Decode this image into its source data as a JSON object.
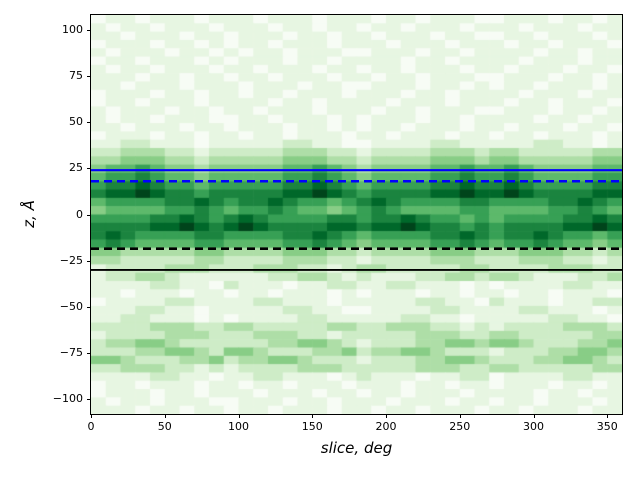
{
  "chart_data": {
    "type": "heatmap",
    "title": "",
    "xlabel": "slice, deg",
    "ylabel": "z, Å",
    "xlim": [
      0,
      360
    ],
    "ylim": [
      -108,
      108
    ],
    "grid_visible": false,
    "legend": "none",
    "x_ticks": {
      "values": [
        0,
        50,
        100,
        150,
        200,
        250,
        300,
        350
      ],
      "labels": [
        "0",
        "50",
        "100",
        "150",
        "200",
        "250",
        "300",
        "350"
      ]
    },
    "y_ticks": {
      "values": [
        100,
        75,
        50,
        25,
        0,
        -25,
        -50,
        -75,
        -100
      ],
      "labels": [
        "100",
        "75",
        "50",
        "25",
        "0",
        "−25",
        "−50",
        "−75",
        "−100"
      ]
    },
    "colormap": {
      "name": "Greens",
      "anchors": [
        [
          0.0,
          "#f7fcf5"
        ],
        [
          0.125,
          "#e5f5e0"
        ],
        [
          0.25,
          "#c7e9c0"
        ],
        [
          0.375,
          "#a1d99b"
        ],
        [
          0.5,
          "#74c476"
        ],
        [
          0.625,
          "#41ab5d"
        ],
        [
          0.75,
          "#238b45"
        ],
        [
          0.875,
          "#006d2c"
        ],
        [
          1.0,
          "#00441b"
        ]
      ]
    },
    "grid": {
      "cols": 36,
      "rows": 48,
      "col_width_deg": 10,
      "row_height_ang": 4.5,
      "value_scale": 9
    },
    "rows": [
      [
        "011011101",
        "110111011",
        "101101110",
        "011101101"
      ],
      [
        "101101110",
        "111011011",
        "011011101",
        "110111011"
      ],
      [
        "110111011",
        "011101101",
        "101110110",
        "011011101"
      ],
      [
        "011101101",
        "011011101",
        "110111011",
        "101101110"
      ],
      [
        "101110110",
        "101101110",
        "011101101",
        "111011011"
      ],
      [
        "011011101",
        "011101101",
        "111011011",
        "110111011"
      ],
      [
        "101101110",
        "110111011",
        "011011101",
        "101110110"
      ],
      [
        "111011011",
        "011011101",
        "101101110",
        "011101101"
      ],
      [
        "110111011",
        "101110110",
        "011101101",
        "011011101"
      ],
      [
        "011101101",
        "101101110",
        "111011011",
        "110111011"
      ],
      [
        "011011101",
        "111011011",
        "110111011",
        "101101110"
      ],
      [
        "101110110",
        "110111011",
        "101101110",
        "011101101"
      ],
      [
        "101101110",
        "011011101",
        "011101101",
        "111011011"
      ],
      [
        "110111011",
        "011101101",
        "011011101",
        "101110110"
      ],
      [
        "011101101",
        "101101110",
        "110111011",
        "011011101"
      ],
      [
        "112211101",
        "111122110",
        "011112211",
        "111221101"
      ],
      [
        "223332212",
        "222233322",
        "122223332",
        "332222233"
      ],
      [
        "334443323",
        "333344433",
        "233334443",
        "443333344"
      ],
      [
        "455654434",
        "444455654",
        "344445565",
        "565444455"
      ],
      [
        "566765545",
        "555566765",
        "455556676",
        "676555566"
      ],
      [
        "677876656",
        "666677876",
        "566667787",
        "787666677"
      ],
      [
        "788987767",
        "777788987",
        "677778898",
        "898777788"
      ],
      [
        "566667787",
        "677876656",
        "787666677",
        "666677876"
      ],
      [
        "455556676",
        "566765545",
        "676555566",
        "555566765"
      ],
      [
        "666677876",
        "787666677",
        "677876656",
        "566667787"
      ],
      [
        "777788987",
        "898777788",
        "788987767",
        "677778898"
      ],
      [
        "787666677",
        "666677876",
        "566667787",
        "677876656"
      ],
      [
        "676555566",
        "555566765",
        "455556676",
        "566765545"
      ],
      [
        "443333344",
        "333344433",
        "233334443",
        "334443323"
      ],
      [
        "332222233",
        "222233322",
        "122223332",
        "223332212"
      ],
      [
        "122223332",
        "223332212",
        "332222233",
        "222233322"
      ],
      [
        "122332111",
        "111223321",
        "211122332",
        "332111223"
      ],
      [
        "111122110",
        "211101122",
        "112211101",
        "011112211"
      ],
      [
        "110111011",
        "011011101",
        "011101101",
        "101101110"
      ],
      [
        "011112211",
        "112211101",
        "111122110",
        "211101122"
      ],
      [
        "111221101",
        "111122110",
        "011112211",
        "112211101"
      ],
      [
        "112211101",
        "011112211",
        "111221101",
        "111122110"
      ],
      [
        "222233322",
        "332222233",
        "223332212",
        "122223332"
      ],
      [
        "122223332",
        "223332212",
        "222233322",
        "332222233"
      ],
      [
        "233443222",
        "222334432",
        "122233443",
        "443222334"
      ],
      [
        "222334432",
        "443222334",
        "233443222",
        "122233443"
      ],
      [
        "443222334",
        "233443222",
        "122233443",
        "222334432"
      ],
      [
        "223332212",
        "122223332",
        "222233322",
        "332222233"
      ],
      [
        "111122110",
        "112211101",
        "211101122",
        "011112211"
      ],
      [
        "011011101",
        "101101110",
        "111011011",
        "011101101"
      ],
      [
        "011101101",
        "110111011",
        "011011101",
        "111011011"
      ],
      [
        "101101110",
        "011101101",
        "110111011",
        "011011101"
      ],
      [
        "111011011",
        "011011101",
        "101101110",
        "110111011"
      ]
    ],
    "hlines": [
      {
        "z": 24,
        "color": "#0000ff",
        "style": "solid",
        "width": 2.2,
        "dash": ""
      },
      {
        "z": 18,
        "color": "#0000ff",
        "style": "dashed",
        "width": 2.6,
        "dash": "8,5"
      },
      {
        "z": -18.5,
        "color": "#000000",
        "style": "dashed",
        "width": 2.6,
        "dash": "8,5"
      },
      {
        "z": -30,
        "color": "#000000",
        "style": "solid",
        "width": 1.8,
        "dash": ""
      }
    ]
  }
}
